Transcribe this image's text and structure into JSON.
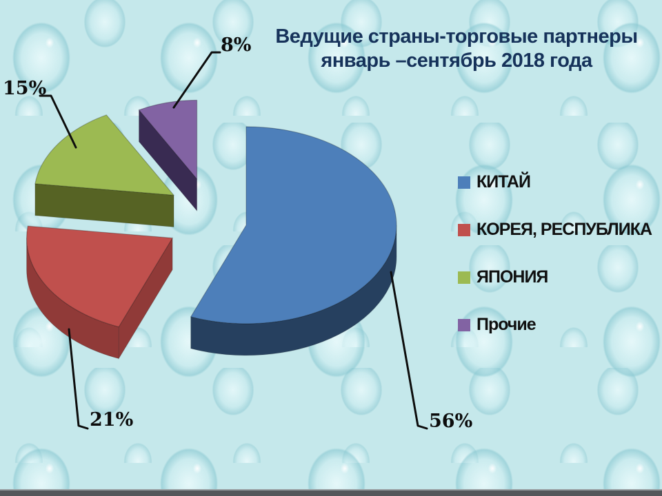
{
  "slide": {
    "title_line1": "Ведущие страны-торговые партнеры",
    "title_line2": "январь –сентябрь 2018 года",
    "title_color": "#16325a",
    "background_base_color": "#c5e8eb",
    "footer_bar_color": "#54565a"
  },
  "chart_data": {
    "type": "pie",
    "style": "3d-exploded",
    "title": "Ведущие страны-торговые партнеры январь –сентябрь 2018 года",
    "legend_position": "right",
    "start_angle_deg": -90,
    "direction": "clockwise",
    "categories": [
      "КИТАЙ",
      "КОРЕЯ, РЕСПУБЛИКА",
      "ЯПОНИЯ",
      "Прочие"
    ],
    "values": [
      56,
      21,
      15,
      8
    ],
    "slices": [
      {
        "label": "КИТАЙ",
        "value": 56,
        "pct": "56%",
        "color": "#4d7fba",
        "side_color": "#26405f"
      },
      {
        "label": "КОРЕЯ, РЕСПУБЛИКА",
        "value": 21,
        "pct": "21%",
        "color": "#c0504d",
        "side_color": "#903a38"
      },
      {
        "label": "ЯПОНИЯ",
        "value": 15,
        "pct": "15%",
        "color": "#9cba52",
        "side_color": "#566324"
      },
      {
        "label": "Прочие",
        "value": 8,
        "pct": "8%",
        "color": "#8263a3",
        "side_color": "#392b52"
      }
    ],
    "leader_line_color": "#0d0d0d"
  }
}
